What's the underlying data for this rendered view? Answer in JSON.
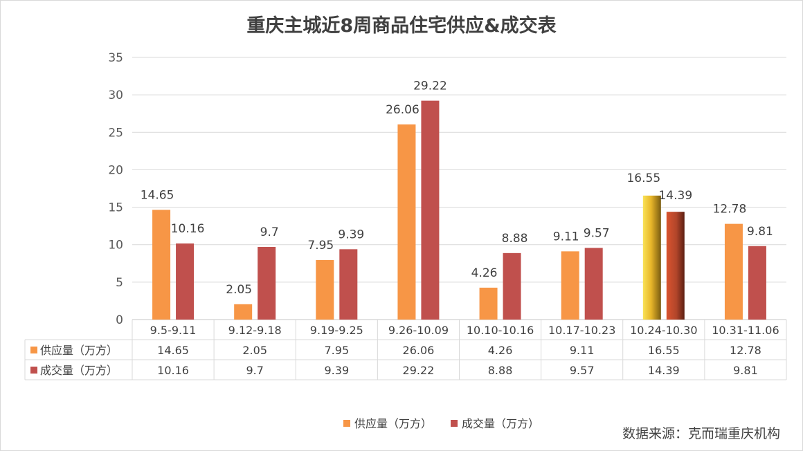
{
  "chart_data": {
    "type": "bar",
    "title": "重庆主城近8周商品住宅供应&成交表",
    "categories": [
      "9.5-9.11",
      "9.12-9.18",
      "9.19-9.25",
      "9.26-10.09",
      "10.10-10.16",
      "10.17-10.23",
      "10.24-10.30",
      "10.31-11.06"
    ],
    "series": [
      {
        "name": "供应量（万方）",
        "color": "#f79646",
        "values": [
          14.65,
          2.05,
          7.95,
          26.06,
          4.26,
          9.11,
          16.55,
          12.78
        ],
        "labels": [
          "14.65",
          "2.05",
          "7.95",
          "26.06",
          "4.26",
          "9.11",
          "16.55",
          "12.78"
        ]
      },
      {
        "name": "成交量（万方）",
        "color": "#c0504d",
        "values": [
          10.16,
          9.7,
          9.39,
          29.22,
          8.88,
          9.57,
          14.39,
          9.81
        ],
        "labels": [
          "10.16",
          "9.7",
          "9.39",
          "29.22",
          "8.88",
          "9.57",
          "14.39",
          "9.81"
        ]
      }
    ],
    "ylim": [
      0,
      35
    ],
    "yticks": [
      "0",
      "5",
      "10",
      "15",
      "20",
      "25",
      "30",
      "35"
    ],
    "grid": true,
    "legend_position": "bottom",
    "data_table": true,
    "highlight_category_index": 6
  },
  "source_note": "数据来源：克而瑞重庆机构"
}
